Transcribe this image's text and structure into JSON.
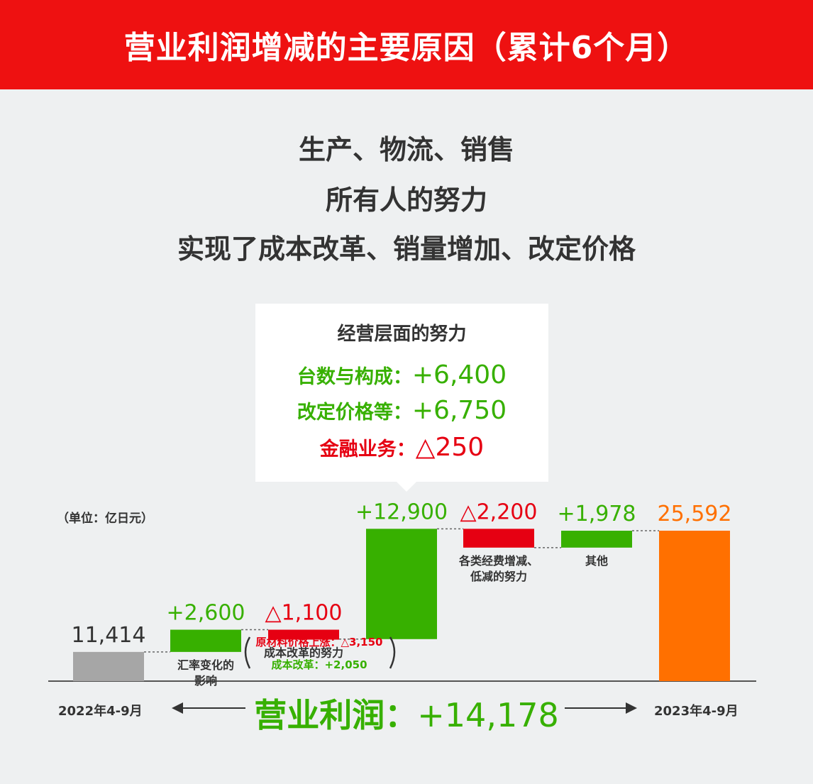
{
  "banner": {
    "title": "营业利润增减的主要原因（累计6个月）"
  },
  "headline": {
    "line1": "生产、物流、销售",
    "line2": "所有人的努力",
    "line3": "实现了成本改革、销量增加、改定价格"
  },
  "callout": {
    "title": "经营层面的努力",
    "rows": [
      {
        "label": "台数与构成：",
        "value": "+6,400",
        "color": "#37b000"
      },
      {
        "label": "改定价格等：",
        "value": "+6,750",
        "color": "#37b000"
      },
      {
        "label": "金融业务：",
        "value": "△250",
        "color": "#e60012"
      }
    ]
  },
  "unit_label": "（单位：亿日元）",
  "chart_data": {
    "type": "waterfall",
    "unit": "亿日元",
    "steps": [
      {
        "name": "2022年4-9月",
        "label": "",
        "value": 11414,
        "display": "11,414",
        "kind": "total",
        "color": "#a6a6a6"
      },
      {
        "name": "汇率变化的影响",
        "label": [
          "汇率变化的",
          "影响"
        ],
        "value": 2600,
        "display": "+2,600",
        "kind": "delta",
        "color": "#37b000"
      },
      {
        "name": "成本改革的努力",
        "label": [
          "成本改革的努力"
        ],
        "value": -1100,
        "display": "△1,100",
        "kind": "delta",
        "color": "#e60012"
      },
      {
        "name": "经营层面的努力",
        "label": [],
        "value": 12900,
        "display": "+12,900",
        "kind": "delta",
        "color": "#37b000"
      },
      {
        "name": "各类经费增减、低减的努力",
        "label": [
          "各类经费增减、",
          "低减的努力"
        ],
        "value": -2200,
        "display": "△2,200",
        "kind": "delta",
        "color": "#e60012"
      },
      {
        "name": "其他",
        "label": [
          "其他"
        ],
        "value": 1978,
        "display": "+1,978",
        "kind": "delta",
        "color": "#37b000"
      },
      {
        "name": "2023年4-9月",
        "label": "",
        "value": 25592,
        "display": "25,592",
        "kind": "total",
        "color": "#ff7000"
      }
    ],
    "cost_breakdown": [
      {
        "text": "原材料价格上涨：△3,150",
        "color": "#e60012"
      },
      {
        "text": "成本改革：+2,050",
        "color": "#37b000"
      }
    ]
  },
  "footer": {
    "start": "2022年4-9月",
    "end": "2023年4-9月",
    "total_label": "营业利润：",
    "total_value": "+14,178"
  }
}
